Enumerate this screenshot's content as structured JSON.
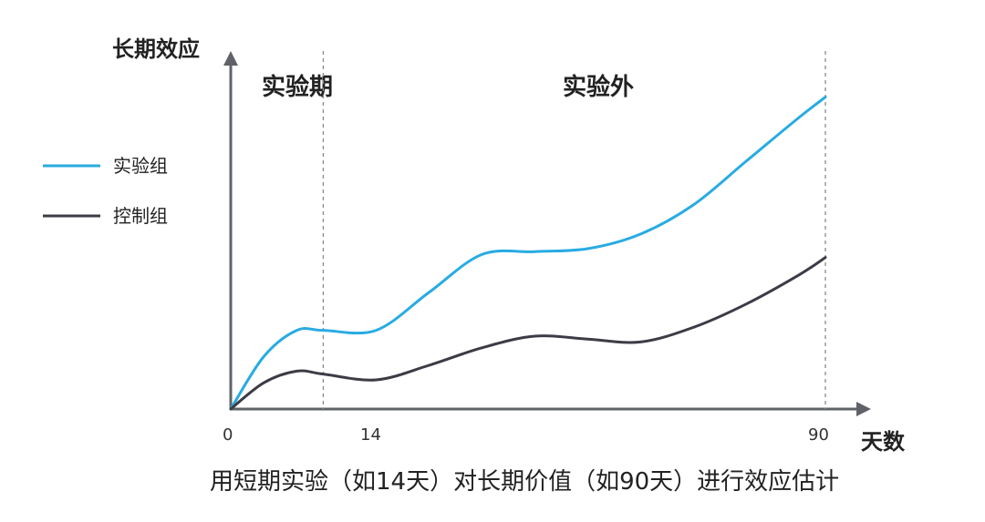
{
  "chart_data": {
    "type": "line",
    "title": "",
    "caption": "用短期实验（如14天）对长期价值（如90天）进行效应估计",
    "xlabel": "天数",
    "ylabel": "长期效应",
    "x_ticks": [
      "0",
      "14",
      "90"
    ],
    "x_range": [
      0,
      90
    ],
    "y_range": [
      0,
      100
    ],
    "grid": false,
    "legend_position": "left",
    "regions": [
      {
        "label": "实验期",
        "from": 0,
        "to": 14
      },
      {
        "label": "实验外",
        "from": 14,
        "to": 90
      }
    ],
    "dividers": [
      14,
      90
    ],
    "series": [
      {
        "name": "实验组",
        "color": "#29abe2",
        "x": [
          0,
          5,
          10,
          14,
          22,
          30,
          38,
          46,
          54,
          62,
          70,
          78,
          86,
          90
        ],
        "y": [
          0,
          18,
          27,
          27,
          27,
          40,
          53,
          54,
          55,
          60,
          70,
          85,
          100,
          107
        ]
      },
      {
        "name": "控制组",
        "color": "#3c3c46",
        "x": [
          0,
          5,
          10,
          14,
          22,
          30,
          38,
          46,
          54,
          62,
          70,
          78,
          86,
          90
        ],
        "y": [
          0,
          9,
          13,
          12,
          10,
          15,
          21,
          25,
          24,
          23,
          28,
          36,
          46,
          52
        ]
      }
    ]
  }
}
